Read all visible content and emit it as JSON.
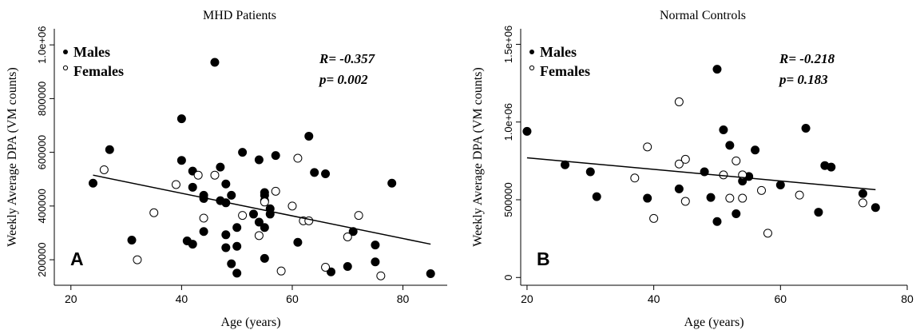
{
  "chart_data": [
    {
      "type": "scatter",
      "title": "MHD Patients",
      "panel_letter": "A",
      "xlabel": "Age (years)",
      "ylabel": "Weekly Average DPA (VM counts)",
      "xlim": [
        17,
        88
      ],
      "ylim": [
        105000,
        1060000
      ],
      "xticks": [
        20,
        40,
        60,
        80
      ],
      "yticks": [
        200000,
        400000,
        600000,
        800000,
        1000000
      ],
      "ytick_labels": [
        "200000",
        "400000",
        "600000",
        "800000",
        "1.0e+06"
      ],
      "legend": {
        "placement": "top-left",
        "entries": [
          "Males",
          "Females"
        ]
      },
      "stats": {
        "r": "R= -0.357",
        "p": "p= 0.002"
      },
      "trend_line": {
        "x": [
          24,
          85
        ],
        "y": [
          515000,
          258000
        ]
      },
      "series": [
        {
          "name": "Males",
          "marker": "filled-circle",
          "points": [
            [
              24,
              485000
            ],
            [
              27,
              610000
            ],
            [
              31,
              273000
            ],
            [
              40,
              725000
            ],
            [
              40,
              570000
            ],
            [
              41,
              270000
            ],
            [
              42,
              530000
            ],
            [
              42,
              470000
            ],
            [
              42,
              258000
            ],
            [
              44,
              440000
            ],
            [
              44,
              428000
            ],
            [
              44,
              305000
            ],
            [
              46,
              935000
            ],
            [
              47,
              545000
            ],
            [
              47,
              420000
            ],
            [
              48,
              482000
            ],
            [
              48,
              412000
            ],
            [
              48,
              293000
            ],
            [
              48,
              245000
            ],
            [
              49,
              440000
            ],
            [
              49,
              185000
            ],
            [
              50,
              320000
            ],
            [
              50,
              250000
            ],
            [
              50,
              150000
            ],
            [
              51,
              600000
            ],
            [
              53,
              370000
            ],
            [
              54,
              572000
            ],
            [
              54,
              340000
            ],
            [
              55,
              450000
            ],
            [
              55,
              440000
            ],
            [
              55,
              420000
            ],
            [
              55,
              320000
            ],
            [
              55,
              205000
            ],
            [
              56,
              390000
            ],
            [
              56,
              370000
            ],
            [
              57,
              588000
            ],
            [
              61,
              265000
            ],
            [
              63,
              660000
            ],
            [
              64,
              525000
            ],
            [
              66,
              520000
            ],
            [
              67,
              155000
            ],
            [
              70,
              175000
            ],
            [
              71,
              305000
            ],
            [
              75,
              255000
            ],
            [
              75,
              192000
            ],
            [
              78,
              485000
            ],
            [
              85,
              148000
            ]
          ]
        },
        {
          "name": "Females",
          "marker": "open-circle",
          "points": [
            [
              26,
              535000
            ],
            [
              32,
              200000
            ],
            [
              35,
              375000
            ],
            [
              39,
              480000
            ],
            [
              43,
              515000
            ],
            [
              44,
              355000
            ],
            [
              46,
              515000
            ],
            [
              51,
              365000
            ],
            [
              54,
              290000
            ],
            [
              55,
              415000
            ],
            [
              57,
              455000
            ],
            [
              58,
              158000
            ],
            [
              60,
              400000
            ],
            [
              61,
              578000
            ],
            [
              62,
              345000
            ],
            [
              63,
              345000
            ],
            [
              66,
              172000
            ],
            [
              70,
              285000
            ],
            [
              72,
              365000
            ],
            [
              76,
              140000
            ]
          ]
        }
      ]
    },
    {
      "type": "scatter",
      "title": "Normal Controls",
      "panel_letter": "B",
      "xlabel": "Age (years)",
      "ylabel": "Weekly Average DPA (VM counts)",
      "xlim": [
        19,
        80
      ],
      "ylim": [
        -50000,
        1600000
      ],
      "xticks": [
        20,
        40,
        60,
        80
      ],
      "yticks": [
        0,
        500000,
        1000000,
        1500000
      ],
      "ytick_labels": [
        "0",
        "500000",
        "1.0e+06",
        "1.5e+06"
      ],
      "legend": {
        "placement": "top-left",
        "entries": [
          "Males",
          "Females"
        ]
      },
      "stats": {
        "r": "R= -0.218",
        "p": "p= 0.183"
      },
      "trend_line": {
        "x": [
          20,
          75
        ],
        "y": [
          770000,
          565000
        ]
      },
      "series": [
        {
          "name": "Males",
          "marker": "filled-circle",
          "points": [
            [
              20,
              940000
            ],
            [
              26,
              725000
            ],
            [
              30,
              680000
            ],
            [
              31,
              520000
            ],
            [
              39,
              510000
            ],
            [
              44,
              570000
            ],
            [
              48,
              680000
            ],
            [
              49,
              515000
            ],
            [
              50,
              1340000
            ],
            [
              50,
              360000
            ],
            [
              51,
              950000
            ],
            [
              52,
              850000
            ],
            [
              53,
              410000
            ],
            [
              54,
              620000
            ],
            [
              55,
              650000
            ],
            [
              56,
              820000
            ],
            [
              60,
              595000
            ],
            [
              64,
              960000
            ],
            [
              66,
              420000
            ],
            [
              67,
              720000
            ],
            [
              68,
              710000
            ],
            [
              73,
              540000
            ],
            [
              75,
              450000
            ]
          ]
        },
        {
          "name": "Females",
          "marker": "open-circle",
          "points": [
            [
              37,
              640000
            ],
            [
              39,
              840000
            ],
            [
              40,
              380000
            ],
            [
              44,
              1130000
            ],
            [
              44,
              730000
            ],
            [
              45,
              760000
            ],
            [
              45,
              490000
            ],
            [
              51,
              660000
            ],
            [
              52,
              510000
            ],
            [
              53,
              750000
            ],
            [
              54,
              660000
            ],
            [
              54,
              510000
            ],
            [
              57,
              560000
            ],
            [
              58,
              285000
            ],
            [
              63,
              530000
            ],
            [
              73,
              480000
            ]
          ]
        }
      ]
    }
  ]
}
